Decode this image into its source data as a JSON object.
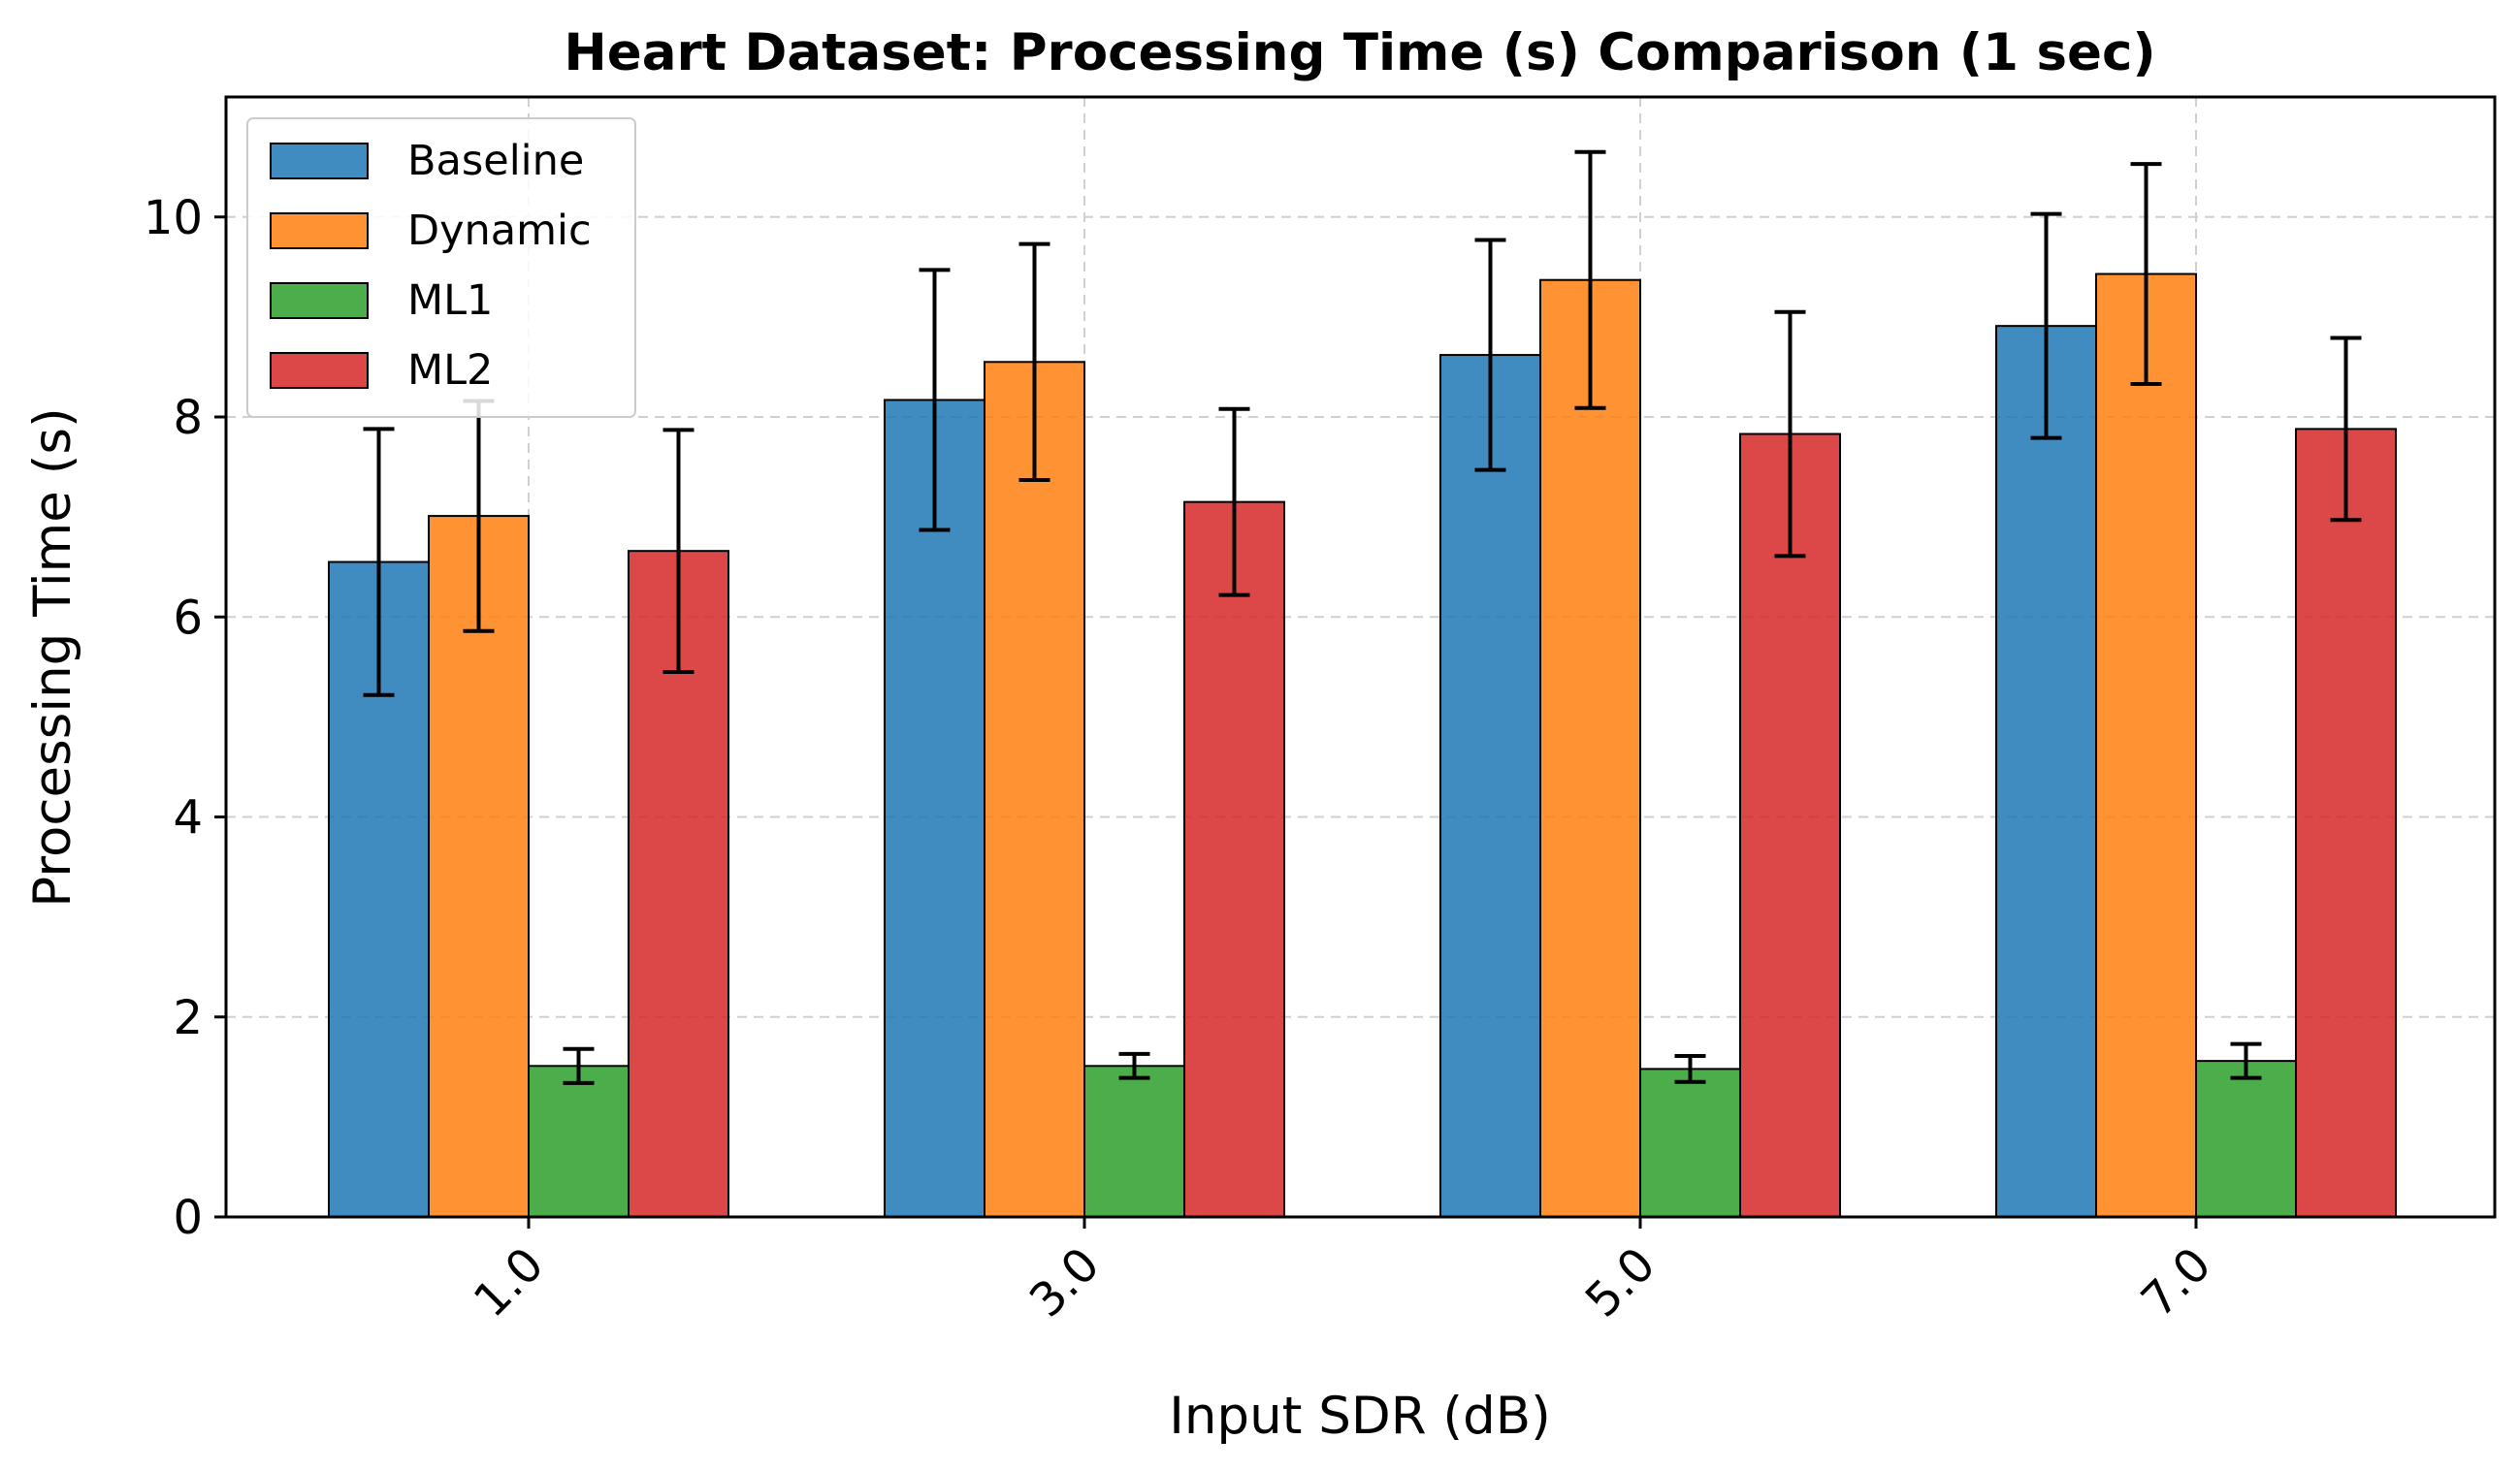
{
  "chart_data": {
    "type": "bar",
    "title": "Heart Dataset: Processing Time (s) Comparison (1 sec)",
    "xlabel": "Input SDR (dB)",
    "ylabel": "Processing Time (s)",
    "categories": [
      "1.0",
      "3.0",
      "5.0",
      "7.0"
    ],
    "ylim": [
      0,
      11.2
    ],
    "yticks": [
      0,
      2,
      4,
      6,
      8,
      10
    ],
    "grid": true,
    "legend_position": "top-left",
    "series": [
      {
        "name": "Baseline",
        "color": "#1f77b4",
        "values": [
          6.55,
          8.17,
          8.62,
          8.91
        ],
        "errors": [
          1.33,
          1.3,
          1.15,
          1.12
        ]
      },
      {
        "name": "Dynamic",
        "color": "#ff7f0e",
        "values": [
          7.01,
          8.55,
          9.37,
          9.43
        ],
        "errors": [
          1.15,
          1.18,
          1.28,
          1.1
        ]
      },
      {
        "name": "ML1",
        "color": "#2ca02c",
        "values": [
          1.51,
          1.51,
          1.48,
          1.56
        ],
        "errors": [
          0.17,
          0.12,
          0.13,
          0.17
        ]
      },
      {
        "name": "ML2",
        "color": "#d62728",
        "values": [
          6.66,
          7.15,
          7.83,
          7.88
        ],
        "errors": [
          1.21,
          0.93,
          1.22,
          0.91
        ]
      }
    ]
  }
}
